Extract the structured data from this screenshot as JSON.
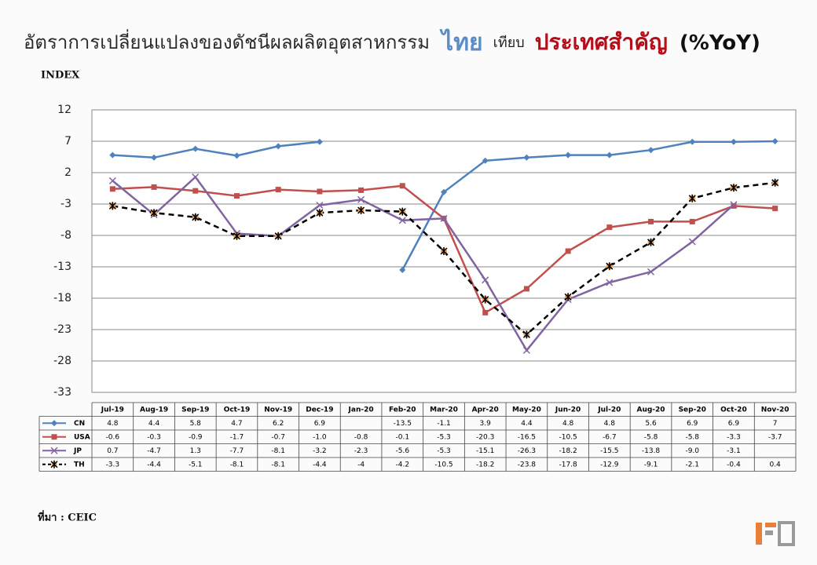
{
  "chart_data": {
    "type": "line",
    "title_parts": [
      "อัตราการเปลี่ยนแปลงของดัชนีผลผลิตอุตสาหกรรม",
      "ไทย",
      "เทียบ",
      "ประเทศสำคัญ",
      "(%YoY)"
    ],
    "y_label": "INDEX",
    "source": "ที่มา : CEIC",
    "categories": [
      "Jul-19",
      "Aug-19",
      "Sep-19",
      "Oct-19",
      "Nov-19",
      "Dec-19",
      "Jan-20",
      "Feb-20",
      "Mar-20",
      "Apr-20",
      "May-20",
      "Jun-20",
      "Jul-20",
      "Aug-20",
      "Sep-20",
      "Oct-20",
      "Nov-20"
    ],
    "ylim": [
      -33,
      12
    ],
    "yticks": [
      -33,
      -28,
      -23,
      -18,
      -13,
      -8,
      -3,
      2,
      7,
      12
    ],
    "grid": true,
    "series": [
      {
        "name": "CN",
        "color": "#4f81bd",
        "marker": "diamond",
        "dash": false,
        "values": [
          4.8,
          4.4,
          5.8,
          4.7,
          6.2,
          6.9,
          null,
          -13.5,
          -1.1,
          3.9,
          4.4,
          4.8,
          4.8,
          5.6,
          6.9,
          6.9,
          7
        ]
      },
      {
        "name": "USA",
        "color": "#c0504d",
        "marker": "square",
        "dash": false,
        "values": [
          -0.6,
          -0.3,
          -0.9,
          -1.7,
          -0.7,
          -1.0,
          -0.8,
          -0.1,
          -5.3,
          -20.3,
          -16.5,
          -10.5,
          -6.7,
          -5.8,
          -5.8,
          -3.3,
          -3.7
        ],
        "value_labels": [
          "-0.6",
          "-0.3",
          "-0.9",
          "-1.7",
          "-0.7",
          "-1.0",
          "-0.8",
          "-0.1",
          "-5.3",
          "-20.3",
          "-16.5",
          "-10.5",
          "-6.7",
          "-5.8",
          "-5.8",
          "-3.3",
          "-3.7"
        ]
      },
      {
        "name": "JP",
        "color": "#8064a2",
        "marker": "x",
        "dash": false,
        "values": [
          0.7,
          -4.7,
          1.3,
          -7.7,
          -8.1,
          -3.2,
          -2.3,
          -5.6,
          -5.3,
          -15.1,
          -26.3,
          -18.2,
          -15.5,
          -13.8,
          -9.0,
          -3.1,
          null
        ],
        "value_labels": [
          "0.7",
          "-4.7",
          "1.3",
          "-7.7",
          "-8.1",
          "-3.2",
          "-2.3",
          "-5.6",
          "-5.3",
          "-15.1",
          "-26.3",
          "-18.2",
          "-15.5",
          "-13.8",
          "-9.0",
          "-3.1",
          null
        ]
      },
      {
        "name": "TH",
        "color": "#000000",
        "marker": "star",
        "marker_color": "#f0a050",
        "dash": true,
        "values": [
          -3.3,
          -4.4,
          -5.1,
          -8.1,
          -8.1,
          -4.4,
          -4,
          -4.2,
          -10.5,
          -18.2,
          -23.8,
          -17.8,
          -12.9,
          -9.1,
          -2.1,
          -0.4,
          0.4
        ]
      }
    ]
  }
}
